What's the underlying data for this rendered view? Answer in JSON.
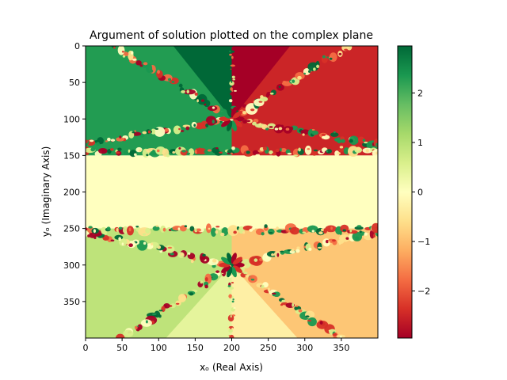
{
  "chart_data": {
    "type": "heatmap",
    "title": "Argument of solution plotted on the complex plane",
    "xlabel": "xₒ (Real Axis)",
    "ylabel": "yₒ (Imaginary Axis)",
    "xlim": [
      0,
      400
    ],
    "ylim": [
      0,
      400
    ],
    "y_axis_inverted": true,
    "x_ticks": [
      "0",
      "50",
      "100",
      "150",
      "200",
      "250",
      "300",
      "350"
    ],
    "y_ticks": [
      "0",
      "50",
      "100",
      "150",
      "200",
      "250",
      "300",
      "350"
    ],
    "colormap": "RdYlGn",
    "colorbar": {
      "range": [
        -2.95,
        2.95
      ],
      "ticks": [
        "−2",
        "−1",
        "0",
        "1",
        "2"
      ],
      "colors": [
        "#a50026",
        "#d73027",
        "#f46d43",
        "#fdae61",
        "#fee08b",
        "#ffffbf",
        "#d9ef8b",
        "#a6d96a",
        "#66bd63",
        "#1a9850",
        "#006837"
      ]
    },
    "regions": [
      {
        "name": "upper-left",
        "value": 2.3
      },
      {
        "name": "upper-center-left",
        "value": 2.95
      },
      {
        "name": "upper-center-right",
        "value": -2.95
      },
      {
        "name": "upper-right",
        "value": -2.5
      },
      {
        "name": "middle-band",
        "value": 0.0
      },
      {
        "name": "lower-left",
        "value": 0.9
      },
      {
        "name": "lower-center-left",
        "value": 0.4
      },
      {
        "name": "lower-center-right",
        "value": -0.3
      },
      {
        "name": "lower-right",
        "value": -0.9
      }
    ]
  }
}
